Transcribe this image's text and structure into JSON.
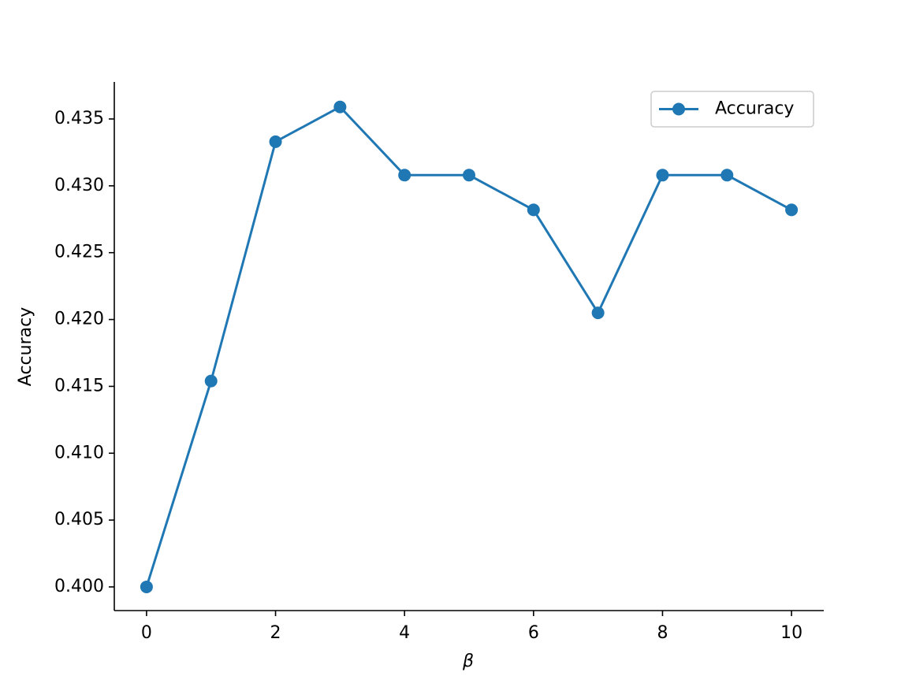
{
  "chart_data": {
    "type": "line",
    "x": [
      0,
      1,
      2,
      3,
      4,
      5,
      6,
      7,
      8,
      9,
      10
    ],
    "series": [
      {
        "name": "Accuracy",
        "color": "#1f77b4",
        "values": [
          0.4,
          0.4154,
          0.4333,
          0.4359,
          0.4308,
          0.4308,
          0.4282,
          0.4205,
          0.4308,
          0.4308,
          0.4282
        ]
      }
    ],
    "xlabel": "β",
    "ylabel": "Accuracy",
    "xlim": [
      -0.5,
      10.5
    ],
    "xticks": [
      0,
      2,
      4,
      6,
      8,
      10
    ],
    "ylim": [
      0.39823,
      0.43777
    ],
    "yticks": [
      {
        "value": 0.4,
        "label": "0.400"
      },
      0.405,
      {
        "value": 0.41,
        "label": "0.410"
      },
      0.415,
      {
        "value": 0.42,
        "label": "0.420"
      },
      0.425,
      {
        "value": 0.43,
        "label": "0.430"
      },
      0.435
    ],
    "legend": "upper right",
    "grid": false
  }
}
